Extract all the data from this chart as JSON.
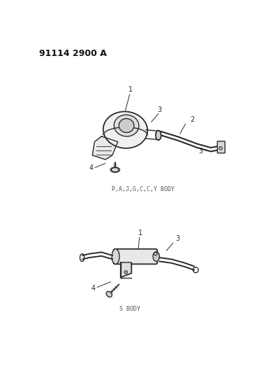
{
  "title": "91114 2900 A",
  "bg_color": "#ffffff",
  "line_color": "#2a2a2a",
  "label1_text": "P,A,J,G,C,C,Y BODY",
  "label2_text": "S BODY",
  "fig_width": 4.01,
  "fig_height": 5.33,
  "dpi": 100,
  "title_fontsize": 9,
  "label_fontsize": 6
}
